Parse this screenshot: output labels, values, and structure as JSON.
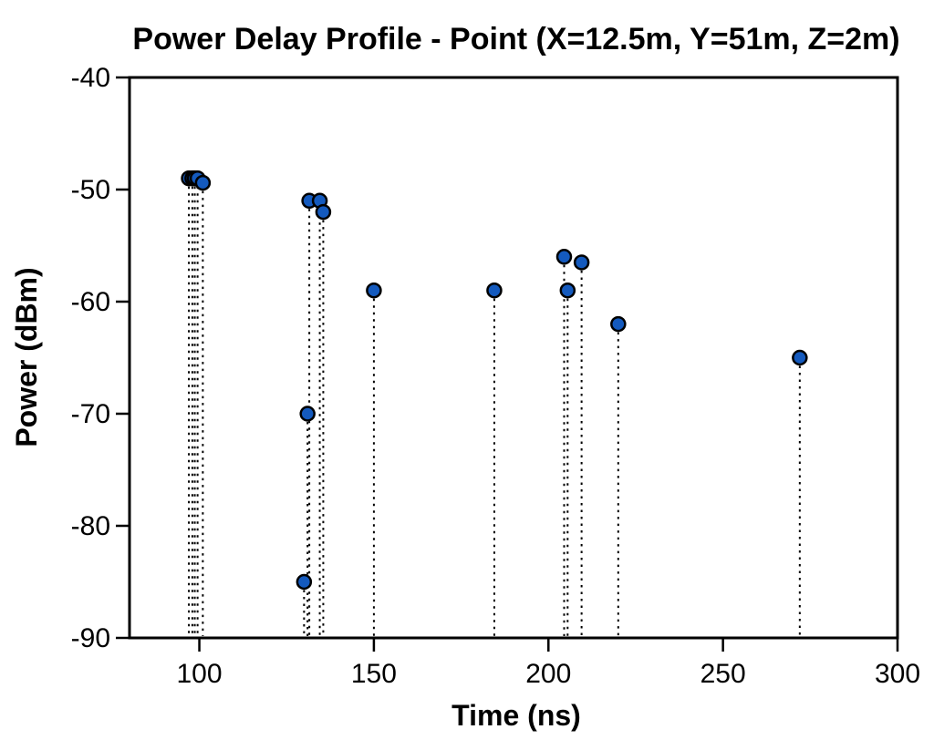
{
  "chart_data": {
    "type": "scatter",
    "subtype": "stem-plot",
    "title": "Power Delay Profile - Point (X=12.5m, Y=51m, Z=2m)",
    "xlabel": "Time (ns)",
    "ylabel": "Power (dBm)",
    "xlim": [
      80,
      300
    ],
    "ylim": [
      -90,
      -40
    ],
    "xticks": [
      100,
      150,
      200,
      250,
      300
    ],
    "yticks": [
      -40,
      -50,
      -60,
      -70,
      -80,
      -90
    ],
    "grid": false,
    "legend": "none",
    "frame": "full-box",
    "stem_style": "dotted",
    "marker": "circle",
    "marker_color": "#145abe",
    "marker_edge_color": "#000000",
    "points": [
      {
        "t": 97.0,
        "p": -49.0
      },
      {
        "t": 98.0,
        "p": -49.0
      },
      {
        "t": 98.7,
        "p": -49.0
      },
      {
        "t": 99.5,
        "p": -49.0
      },
      {
        "t": 101.0,
        "p": -49.4
      },
      {
        "t": 130.0,
        "p": -85.0
      },
      {
        "t": 131.0,
        "p": -70.0
      },
      {
        "t": 131.5,
        "p": -51.0
      },
      {
        "t": 134.5,
        "p": -51.0
      },
      {
        "t": 135.5,
        "p": -52.0
      },
      {
        "t": 150.0,
        "p": -59.0
      },
      {
        "t": 184.5,
        "p": -59.0
      },
      {
        "t": 204.5,
        "p": -56.0
      },
      {
        "t": 205.5,
        "p": -59.0
      },
      {
        "t": 209.5,
        "p": -56.5
      },
      {
        "t": 220.0,
        "p": -62.0
      },
      {
        "t": 272.0,
        "p": -65.0
      }
    ]
  },
  "colors": {
    "background": "#ffffff",
    "axis": "#000000",
    "text": "#000000",
    "marker_fill": "#145abe",
    "marker_edge": "#000000"
  }
}
